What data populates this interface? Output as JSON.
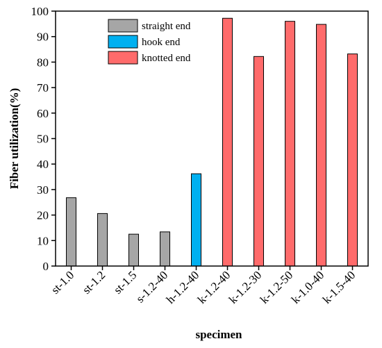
{
  "chart_data": {
    "type": "bar",
    "title": "",
    "xlabel": "specimen",
    "ylabel": "Fiber utilization(%)",
    "ylim": [
      0,
      100
    ],
    "yticks": [
      0,
      10,
      20,
      30,
      40,
      50,
      60,
      70,
      80,
      90,
      100
    ],
    "categories": [
      "st-1.0",
      "st-1.2",
      "st-1.5",
      "s-1.2-40",
      "h-1.2-40",
      "k-1.2-40",
      "k-1.2-30",
      "k-1.2-50",
      "k-1.0-40",
      "k-1.5-40"
    ],
    "values": [
      26.8,
      20.6,
      12.5,
      13.4,
      36.2,
      97.2,
      82.2,
      96.0,
      94.8,
      83.2
    ],
    "groups": [
      "straight end",
      "straight end",
      "straight end",
      "straight end",
      "hook end",
      "knotted end",
      "knotted end",
      "knotted end",
      "knotted end",
      "knotted end"
    ],
    "legend": {
      "placement": "top-center",
      "entries": [
        {
          "label": "straight end",
          "color": "#a6a6a6"
        },
        {
          "label": "hook end",
          "color": "#00b0f0"
        },
        {
          "label": "knotted end",
          "color": "#ff6b6b"
        }
      ]
    },
    "grid": false
  }
}
